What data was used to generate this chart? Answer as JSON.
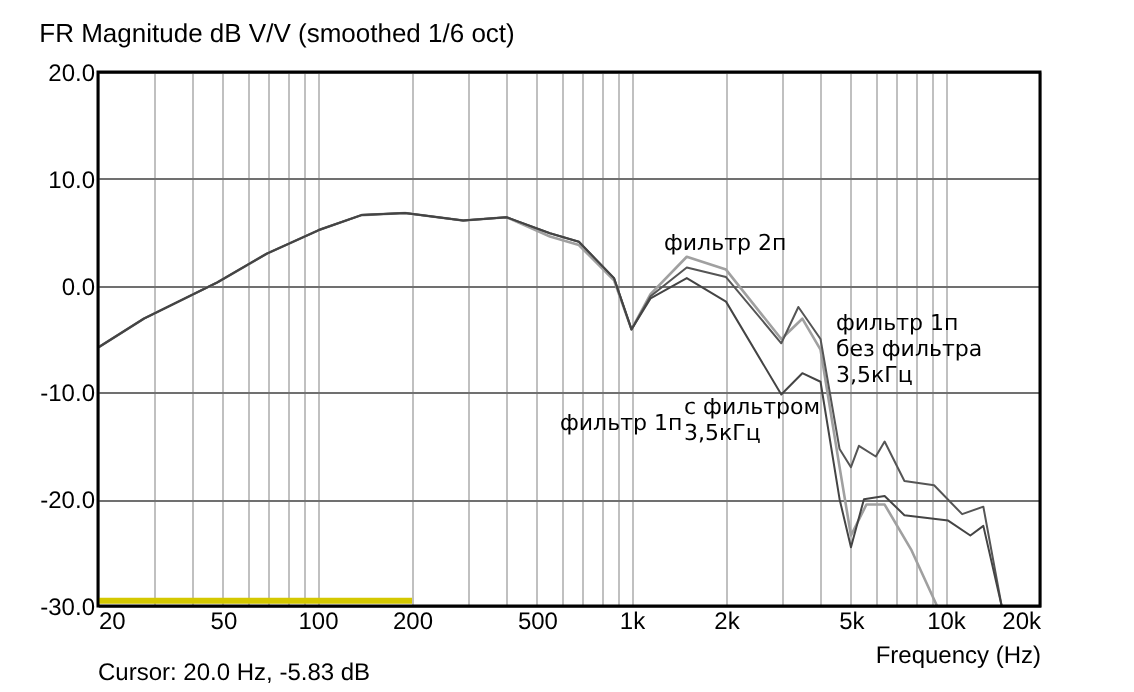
{
  "chart_data": {
    "type": "line",
    "title": "FR Magnitude dB V/V (smoothed 1/6 oct)",
    "xlabel": "Frequency (Hz)",
    "log": "x",
    "grid": true,
    "line_style": "solid",
    "marker": "none",
    "xlim": [
      20,
      20000
    ],
    "ylim": [
      -30,
      20
    ],
    "xticks": [
      20,
      {
        "value": 30,
        "label": null
      },
      {
        "value": 40,
        "label": null
      },
      50,
      {
        "value": 60,
        "label": null
      },
      {
        "value": 70,
        "label": null
      },
      {
        "value": 80,
        "label": null
      },
      {
        "value": 90,
        "label": null
      },
      100,
      200,
      {
        "value": 300,
        "label": null
      },
      {
        "value": 400,
        "label": null
      },
      500,
      {
        "value": 600,
        "label": null
      },
      {
        "value": 700,
        "label": null
      },
      {
        "value": 800,
        "label": null
      },
      {
        "value": 900,
        "label": null
      },
      {
        "value": 1000,
        "label": "1k"
      },
      {
        "value": 2000,
        "label": "2k"
      },
      {
        "value": 3000,
        "label": null
      },
      {
        "value": 4000,
        "label": null
      },
      {
        "value": 5000,
        "label": "5k"
      },
      {
        "value": 6000,
        "label": null
      },
      {
        "value": 7000,
        "label": null
      },
      {
        "value": 8000,
        "label": null
      },
      {
        "value": 9000,
        "label": null
      },
      {
        "value": 10000,
        "label": "10k"
      },
      {
        "value": 20000,
        "label": "20k"
      }
    ],
    "yticks": [
      {
        "value": -30,
        "label": "-30.0"
      },
      {
        "value": -20,
        "label": "-20.0"
      },
      {
        "value": -10,
        "label": "-10.0"
      },
      {
        "value": 0,
        "label": "0.0"
      },
      {
        "value": 10,
        "label": "10.0"
      },
      {
        "value": 20,
        "label": "20.0"
      }
    ],
    "series": [
      {
        "color": "#a0a0a0",
        "x": [
          20,
          28,
          48,
          69,
          101,
          138,
          190,
          291,
          400,
          550,
          680,
          880,
          1000,
          1150,
          1500,
          2000,
          3000,
          3500,
          4000,
          4600,
          5000,
          5600,
          6400,
          7800,
          9400
        ],
        "values": [
          -5.8,
          -3.1,
          0.3,
          3.0,
          5.2,
          6.6,
          6.8,
          6.1,
          6.4,
          4.6,
          3.8,
          0.5,
          -4.1,
          -0.8,
          2.7,
          1.5,
          -5.0,
          -3.1,
          -6,
          -17,
          -23.4,
          -20.5,
          -20.5,
          -24.8,
          -30
        ]
      },
      {
        "color": "#555555",
        "x": [
          20,
          28,
          48,
          69,
          101,
          138,
          190,
          291,
          400,
          550,
          680,
          880,
          1000,
          1150,
          1500,
          2000,
          3000,
          3400,
          4000,
          4600,
          5000,
          5300,
          6000,
          6400,
          7400,
          9200,
          11300,
          13200,
          15100
        ],
        "values": [
          -5.8,
          -3.1,
          0.3,
          3.0,
          5.2,
          6.6,
          6.8,
          6.1,
          6.4,
          4.9,
          4.1,
          0.7,
          -4.1,
          -1.0,
          1.7,
          0.8,
          -5.4,
          -2.0,
          -5,
          -15.3,
          -17,
          -15,
          -16,
          -14.6,
          -18.3,
          -18.7,
          -21.4,
          -20.7,
          -30
        ]
      },
      {
        "color": "#444444",
        "x": [
          20,
          28,
          48,
          69,
          101,
          138,
          190,
          291,
          400,
          550,
          680,
          880,
          1000,
          1150,
          1500,
          2000,
          3000,
          3500,
          4000,
          4600,
          5000,
          5500,
          6400,
          7400,
          10200,
          12000,
          13200,
          15100
        ],
        "values": [
          -5.8,
          -3.1,
          0.3,
          3.0,
          5.2,
          6.6,
          6.8,
          6.1,
          6.4,
          4.9,
          4.1,
          0.7,
          -4.1,
          -1.2,
          0.7,
          -1.5,
          -10.2,
          -8.2,
          -9,
          -20,
          -24.5,
          -20,
          -19.7,
          -21.5,
          -22,
          -23.4,
          -22.5,
          -30
        ]
      },
      {
        "color": "#d4c800",
        "x": [
          20,
          200
        ],
        "values": [
          -29.5,
          -29.5
        ]
      }
    ],
    "annotations": [
      "фильтр 2п",
      "фильтр 1п\nбез фильтра\n3,5кГц",
      "фильтр 1п",
      "с фильтром\n3,5кГц",
      "Cursor: 20.0 Hz, -5.83 dB"
    ]
  }
}
